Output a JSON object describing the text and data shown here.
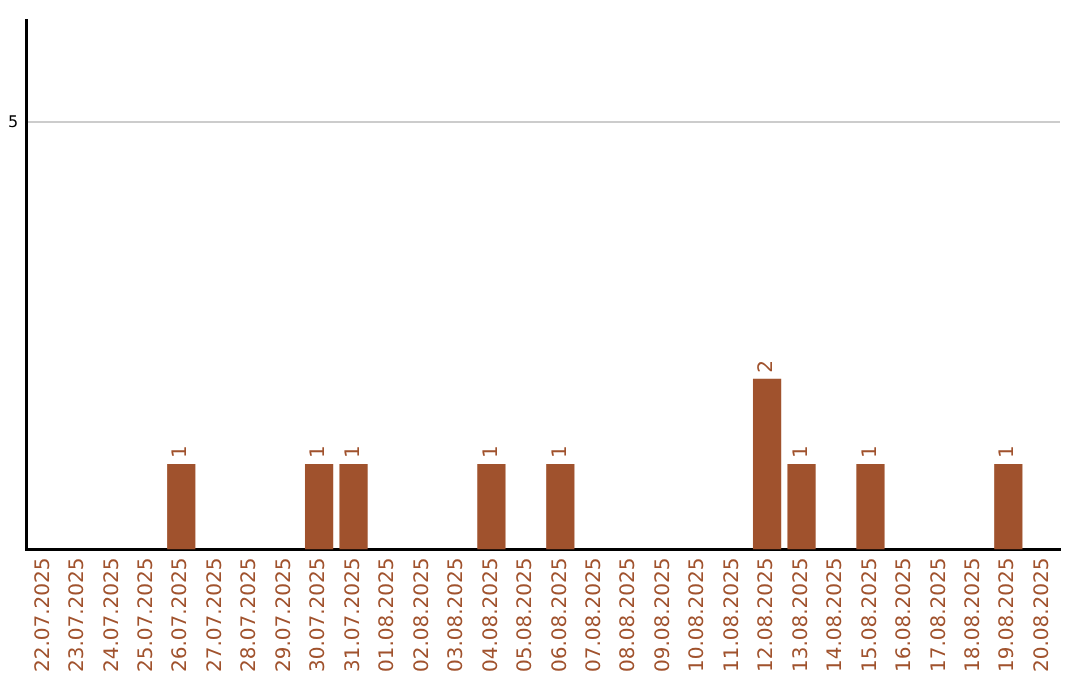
{
  "chart_data": {
    "type": "bar",
    "categories": [
      "22.07.2025",
      "23.07.2025",
      "24.07.2025",
      "25.07.2025",
      "26.07.2025",
      "27.07.2025",
      "28.07.2025",
      "29.07.2025",
      "30.07.2025",
      "31.07.2025",
      "01.08.2025",
      "02.08.2025",
      "03.08.2025",
      "04.08.2025",
      "05.08.2025",
      "06.08.2025",
      "07.08.2025",
      "08.08.2025",
      "09.08.2025",
      "10.08.2025",
      "11.08.2025",
      "12.08.2025",
      "13.08.2025",
      "14.08.2025",
      "15.08.2025",
      "16.08.2025",
      "17.08.2025",
      "18.08.2025",
      "19.08.2025",
      "20.08.2025"
    ],
    "values": [
      0,
      0,
      0,
      0,
      1,
      0,
      0,
      0,
      1,
      1,
      0,
      0,
      0,
      1,
      0,
      1,
      0,
      0,
      0,
      0,
      0,
      2,
      1,
      0,
      1,
      0,
      0,
      0,
      1,
      0
    ],
    "value_labels": [
      null,
      null,
      null,
      null,
      "1",
      null,
      null,
      null,
      "1",
      "1",
      null,
      null,
      null,
      "1",
      null,
      "1",
      null,
      null,
      null,
      null,
      null,
      "2",
      "1",
      null,
      "1",
      null,
      null,
      null,
      "1",
      null
    ],
    "color": "#a0522d",
    "ylim": [
      0,
      6.2
    ],
    "yticks": [
      5
    ],
    "grid": "y",
    "legend": false
  }
}
